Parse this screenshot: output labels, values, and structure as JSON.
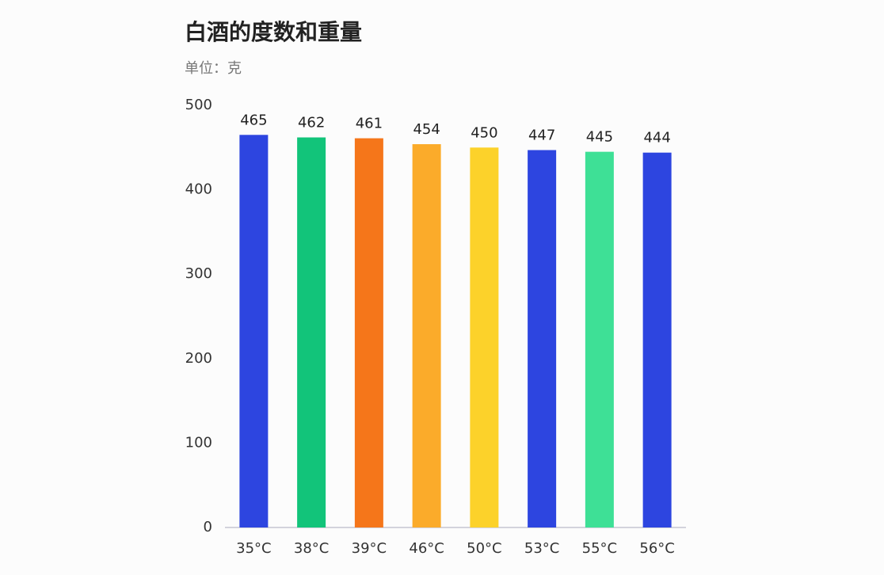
{
  "chart_data": {
    "type": "bar",
    "title": "白酒的度数和重量",
    "subtitle": "单位：克",
    "categories": [
      "35°C",
      "38°C",
      "39°C",
      "46°C",
      "50°C",
      "53°C",
      "55°C",
      "56°C"
    ],
    "values": [
      465,
      462,
      461,
      454,
      450,
      447,
      445,
      444
    ],
    "colors": [
      "#2d45e0",
      "#12c47a",
      "#f5761a",
      "#fbab2a",
      "#fcd22a",
      "#2d45e0",
      "#3ee096",
      "#2d45e0"
    ],
    "ylim": [
      0,
      500
    ],
    "yticks": [
      0,
      100,
      200,
      300,
      400,
      500
    ],
    "grid": false
  }
}
